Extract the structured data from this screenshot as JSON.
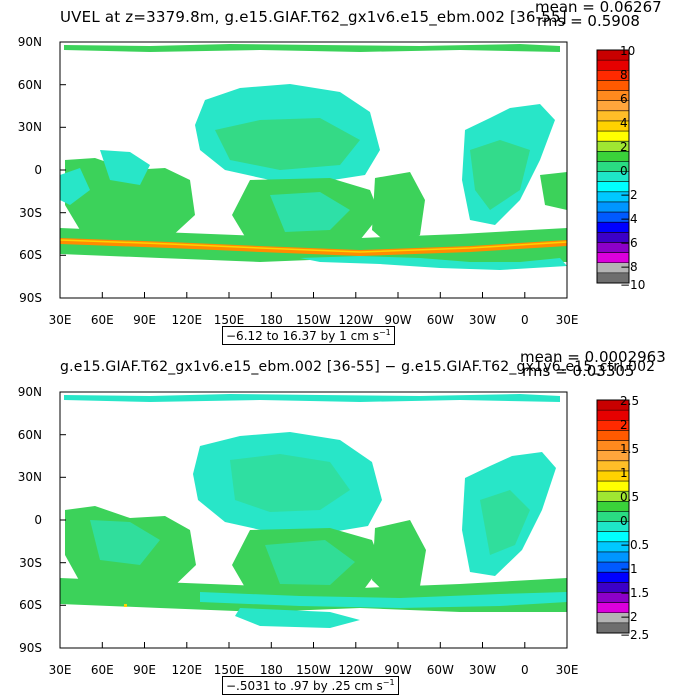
{
  "lat_labels": [
    "90N",
    "60N",
    "30N",
    "0",
    "30S",
    "60S",
    "90S"
  ],
  "lon_labels": [
    "30E",
    "60E",
    "90E",
    "120E",
    "150E",
    "180",
    "150W",
    "120W",
    "90W",
    "60W",
    "30W",
    "0",
    "30E"
  ],
  "panels": [
    {
      "title": "UVEL at z=3379.8m, g.e15.GIAF.T62_gx1v6.e15_ebm.002 [36-55]",
      "mean": "mean = 0.06267",
      "rms": "rms = 0.5908",
      "range_text": "−6.12 to 16.37 by 1 cm s",
      "range_unit_exp": "−1",
      "colorbar_labels": [
        "10",
        "8",
        "6",
        "4",
        "2",
        "0",
        "−2",
        "−4",
        "−6",
        "−8",
        "−10"
      ],
      "colorbar_colors": [
        "#c80000",
        "#e60000",
        "#ff2a00",
        "#ff5a00",
        "#ff8a1e",
        "#ffa53c",
        "#ffbe28",
        "#ffd200",
        "#ffff00",
        "#a0e632",
        "#3ad23a",
        "#2adc82",
        "#1ee6c8",
        "#00ffff",
        "#00c8ff",
        "#0096ff",
        "#005aff",
        "#0000ff",
        "#3c00c8",
        "#8c00c8",
        "#dc00dc",
        "#b4b4b4",
        "#6e6e6e"
      ]
    },
    {
      "title": "g.e15.GIAF.T62_gx1v6.e15_ebm.002 [36-55] − g.e15.GIAF.T62_gx1v6.e15_ctrl.002",
      "mean": "mean = 0.0002963",
      "rms": "rms = 0.03305",
      "range_text": "−.5031 to .97 by .25 cm s",
      "range_unit_exp": "−1",
      "colorbar_labels": [
        "2.5",
        "2",
        "1.5",
        "1",
        "0.5",
        "0",
        "−0.5",
        "−1",
        "−1.5",
        "−2",
        "−2.5"
      ],
      "colorbar_colors": [
        "#c80000",
        "#e60000",
        "#ff2a00",
        "#ff5a00",
        "#ff8a1e",
        "#ffa53c",
        "#ffbe28",
        "#ffd200",
        "#ffff00",
        "#a0e632",
        "#3ad23a",
        "#2adc82",
        "#1ee6c8",
        "#00ffff",
        "#00c8ff",
        "#0096ff",
        "#005aff",
        "#0000ff",
        "#3c00c8",
        "#8c00c8",
        "#dc00dc",
        "#b4b4b4",
        "#6e6e6e"
      ]
    }
  ],
  "colors": {
    "land": "#ffffff",
    "ocean_green": "#3cd25a",
    "ocean_cyan": "#28e6c8",
    "jet_orange": "#ff8c00",
    "jet_yellow": "#ffd200"
  }
}
